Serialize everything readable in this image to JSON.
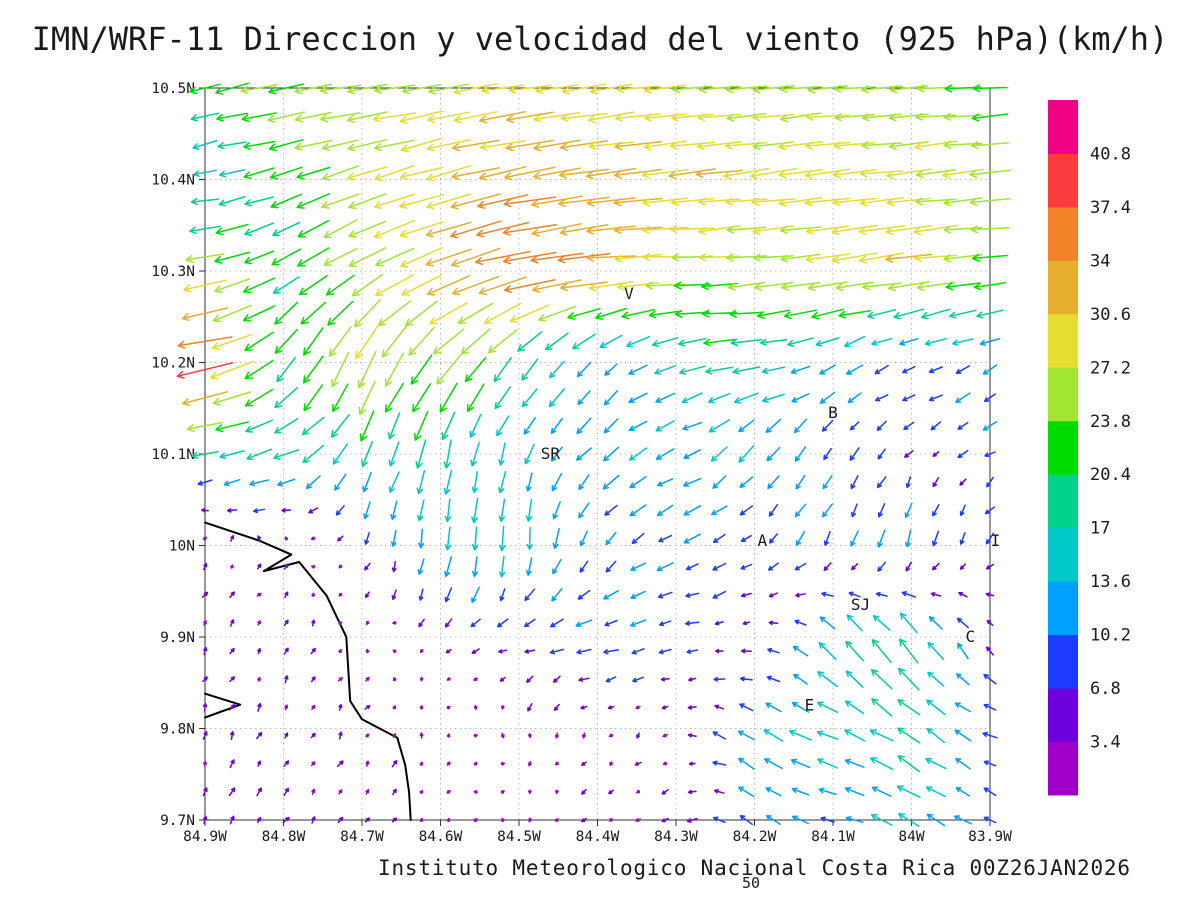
{
  "title": "IMN/WRF-11 Direccion y velocidad del viento (925 hPa)(km/h)",
  "caption": "Instituto Meteorologico Nacional Costa Rica 00Z26JAN2026",
  "page_number": "50",
  "chart_data": {
    "type": "vector_field",
    "units": "km/h",
    "level": "925 hPa",
    "lon_range": [
      -84.9,
      -83.9
    ],
    "lat_range": [
      9.7,
      10.5
    ],
    "x_tick_labels": [
      "84.9W",
      "84.8W",
      "84.7W",
      "84.6W",
      "84.5W",
      "84.4W",
      "84.3W",
      "84.2W",
      "84.1W",
      "84W",
      "83.9W"
    ],
    "x_tick_lons": [
      -84.9,
      -84.8,
      -84.7,
      -84.6,
      -84.5,
      -84.4,
      -84.3,
      -84.2,
      -84.1,
      -84.0,
      -83.9
    ],
    "y_tick_labels": [
      "10.5N",
      "10.4N",
      "10.3N",
      "10.2N",
      "10.1N",
      "10N",
      "9.9N",
      "9.8N",
      "9.7N"
    ],
    "y_tick_lats": [
      10.5,
      10.4,
      10.3,
      10.2,
      10.1,
      10.0,
      9.9,
      9.8,
      9.7
    ],
    "colorbar": {
      "labels_bottom_to_top": [
        "3.4",
        "6.8",
        "10.2",
        "13.6",
        "17",
        "20.4",
        "23.8",
        "27.2",
        "30.6",
        "34",
        "37.4",
        "40.8"
      ],
      "levels": [
        3.4,
        6.8,
        10.2,
        13.6,
        17,
        20.4,
        23.8,
        27.2,
        30.6,
        34,
        37.4,
        40.8
      ],
      "colors_bottom_to_top": [
        "#a000c8",
        "#6e00dc",
        "#1e3cff",
        "#00a0ff",
        "#00c8c8",
        "#00d28c",
        "#00dc00",
        "#a0e632",
        "#e6dc32",
        "#e6af2d",
        "#f08228",
        "#fa3c3c",
        "#f00082"
      ]
    },
    "wind_grid": {
      "lons": [
        -84.9,
        -84.8,
        -84.7,
        -84.6,
        -84.5,
        -84.4,
        -84.3,
        -84.2,
        -84.1,
        -84.0,
        -83.9
      ],
      "lats_north_to_south": [
        10.5,
        10.4,
        10.3,
        10.2,
        10.1,
        10.0,
        9.9,
        9.8,
        9.7
      ],
      "u": [
        [
          -20,
          -24,
          -26,
          -27,
          -28,
          -28,
          -27,
          -26,
          -26,
          -25,
          -24
        ],
        [
          -15,
          -20,
          -25,
          -30,
          -33,
          -32,
          -30,
          -29,
          -29,
          -28,
          -26
        ],
        [
          -26,
          -18,
          -22,
          -30,
          -37,
          -33,
          -27,
          -24,
          -28,
          -30,
          -24
        ],
        [
          -37,
          -12,
          -11,
          -16,
          -12,
          -7,
          -16,
          -18,
          -10,
          -8,
          -10
        ],
        [
          -16,
          -18,
          -8,
          -3,
          -4,
          -10,
          -12,
          -8,
          -6,
          -4,
          -6
        ],
        [
          2,
          1,
          -3,
          -2,
          0,
          -6,
          -10,
          -6,
          -4,
          -2,
          -4
        ],
        [
          2,
          2,
          1,
          -4,
          -8,
          -10,
          -8,
          -4,
          -10,
          -12,
          -5
        ],
        [
          2,
          2,
          2,
          1,
          0,
          -2,
          -2,
          -12,
          -14,
          -14,
          -8
        ],
        [
          2,
          3,
          2,
          1,
          1,
          -2,
          -4,
          -8,
          -10,
          -14,
          -8
        ]
      ],
      "v": [
        [
          -6,
          -4,
          -4,
          -5,
          -5,
          -4,
          -3,
          -3,
          -2,
          -2,
          -2
        ],
        [
          -2,
          -6,
          -8,
          -8,
          -6,
          -4,
          -4,
          -4,
          -4,
          -3,
          -3
        ],
        [
          -5,
          -10,
          -14,
          -12,
          -8,
          -3,
          0,
          -2,
          -4,
          -4,
          -2
        ],
        [
          -8,
          -16,
          -24,
          -20,
          -14,
          -10,
          -4,
          -2,
          -6,
          -4,
          -6
        ],
        [
          -4,
          -6,
          -16,
          -18,
          -12,
          -8,
          -6,
          -10,
          -8,
          -4,
          -4
        ],
        [
          3,
          3,
          -6,
          -14,
          -16,
          -8,
          -4,
          -4,
          -10,
          -12,
          -6
        ],
        [
          3,
          3,
          2,
          -4,
          -2,
          -2,
          -2,
          -2,
          12,
          16,
          6
        ],
        [
          4,
          4,
          3,
          2,
          -4,
          -2,
          -2,
          8,
          6,
          10,
          4
        ],
        [
          4,
          4,
          3,
          2,
          2,
          -2,
          -2,
          6,
          2,
          8,
          3
        ]
      ]
    },
    "arrow_cols": 30,
    "arrow_rows": 27,
    "stations": [
      {
        "label": "V",
        "lon": -84.36,
        "lat": 10.275
      },
      {
        "label": "B",
        "lon": -84.1,
        "lat": 10.145
      },
      {
        "label": "SR",
        "lon": -84.46,
        "lat": 10.1
      },
      {
        "label": "A",
        "lon": -84.19,
        "lat": 10.005
      },
      {
        "label": "SJ",
        "lon": -84.065,
        "lat": 9.935
      },
      {
        "label": "C",
        "lon": -83.925,
        "lat": 9.9
      },
      {
        "label": "E",
        "lon": -84.13,
        "lat": 9.825
      },
      {
        "label": "I",
        "lon": -83.893,
        "lat": 10.005
      }
    ],
    "coastline": [
      [
        [
          -84.9,
          10.025
        ],
        [
          -84.83,
          10.005
        ],
        [
          -84.79,
          9.99
        ],
        [
          -84.825,
          9.972
        ],
        [
          -84.78,
          9.982
        ],
        [
          -84.745,
          9.945
        ],
        [
          -84.72,
          9.9
        ],
        [
          -84.715,
          9.83
        ],
        [
          -84.7,
          9.81
        ],
        [
          -84.655,
          9.79
        ],
        [
          -84.645,
          9.76
        ],
        [
          -84.64,
          9.73
        ],
        [
          -84.638,
          9.7
        ]
      ],
      [
        [
          -84.9,
          9.838
        ],
        [
          -84.855,
          9.826
        ],
        [
          -84.9,
          9.812
        ]
      ]
    ],
    "grid_lines": "dotted"
  }
}
